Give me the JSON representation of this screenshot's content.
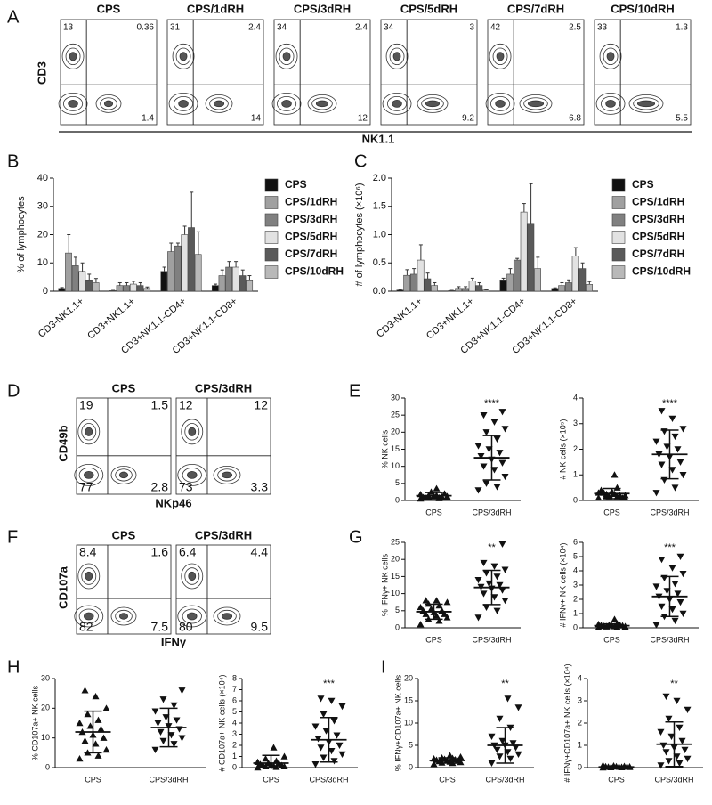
{
  "panels": [
    "A",
    "B",
    "C",
    "D",
    "E",
    "F",
    "G",
    "H",
    "I"
  ],
  "flow": [
    {
      "y_axis": "CD3",
      "x_axis": "NK1.1",
      "plots": [
        {
          "title": "CPS",
          "top_left": 13,
          "top_right": 0.36,
          "bottom_right": 1.4
        },
        {
          "title": "CPS/1dRH",
          "top_left": 31,
          "top_right": 2.4,
          "bottom_right": 14
        },
        {
          "title": "CPS/3dRH",
          "top_left": 34,
          "top_right": 2.4,
          "bottom_right": 12
        },
        {
          "title": "CPS/5dRH",
          "top_left": 34,
          "top_right": 3,
          "bottom_right": 9.2
        },
        {
          "title": "CPS/7dRH",
          "top_left": 42,
          "top_right": 2.5,
          "bottom_right": 6.8
        },
        {
          "title": "CPS/10dRH",
          "top_left": 33,
          "top_right": 1.3,
          "bottom_right": 5.5
        }
      ]
    },
    {
      "y_axis": "CD49b",
      "x_axis": "NKp46",
      "plots": [
        {
          "title": "CPS",
          "top_left": 19,
          "top_right": 1.5,
          "bottom_left": 77,
          "bottom_right": 2.8
        },
        {
          "title": "CPS/3dRH",
          "top_left": 12,
          "top_right": 12,
          "bottom_left": 73,
          "bottom_right": 3.3
        }
      ]
    },
    {
      "y_axis": "CD107a",
      "x_axis": "IFNγ",
      "plots": [
        {
          "title": "CPS",
          "top_left": 8.4,
          "top_right": 1.6,
          "bottom_left": 82,
          "bottom_right": 7.5
        },
        {
          "title": "CPS/3dRH",
          "top_left": 6.4,
          "top_right": 4.4,
          "bottom_left": 80,
          "bottom_right": 9.5
        }
      ]
    }
  ],
  "chart_data": [
    {
      "type": "bar",
      "y_label": "% of lymphocytes",
      "categories": [
        "CD3-NK1.1+",
        "CD3+NK1.1+",
        "CD3+NK1.1-CD4+",
        "CD3+NK1.1-CD8+"
      ],
      "ylim": [
        0,
        40
      ],
      "yticks": [
        0,
        10,
        20,
        30,
        40
      ],
      "series": [
        {
          "name": "CPS",
          "color": "#111111",
          "values": [
            1,
            0.2,
            7,
            2
          ],
          "errors": [
            0.3,
            0.1,
            1.5,
            0.5
          ]
        },
        {
          "name": "CPS/1dRH",
          "color": "#a0a0a0",
          "values": [
            13.5,
            2,
            14,
            5.5
          ],
          "errors": [
            6.5,
            1,
            3,
            2
          ]
        },
        {
          "name": "CPS/3dRH",
          "color": "#808080",
          "values": [
            9,
            2,
            16,
            8.5
          ],
          "errors": [
            3,
            1,
            1,
            2
          ]
        },
        {
          "name": "CPS/5dRH",
          "color": "#e2e2e2",
          "values": [
            7,
            2.5,
            20,
            8.5
          ],
          "errors": [
            3,
            1,
            3,
            2
          ]
        },
        {
          "name": "CPS/7dRH",
          "color": "#5a5a5a",
          "values": [
            4,
            2,
            22.5,
            5.5
          ],
          "errors": [
            2,
            1,
            12.5,
            2
          ]
        },
        {
          "name": "CPS/10dRH",
          "color": "#b8b8b8",
          "values": [
            3,
            1,
            13,
            4
          ],
          "errors": [
            1.5,
            0.5,
            8,
            1.5
          ]
        }
      ]
    },
    {
      "type": "bar",
      "y_label": "# of lymphocytes (×10⁶)",
      "categories": [
        "CD3-NK1.1+",
        "CD3+NK1.1+",
        "CD3+NK1.1-CD4+",
        "CD3+NK1.1-CD8+"
      ],
      "ylim": [
        0,
        2
      ],
      "yticks": [
        {
          "value": 0,
          "label": "0.0"
        },
        0.5,
        {
          "value": 1,
          "label": "1.0"
        },
        1.5,
        {
          "value": 2,
          "label": "2.0"
        }
      ],
      "series": [
        {
          "name": "CPS",
          "color": "#111111",
          "values": [
            0.02,
            0.01,
            0.2,
            0.05
          ],
          "errors": [
            0.01,
            0.005,
            0.03,
            0.01
          ]
        },
        {
          "name": "CPS/1dRH",
          "color": "#a0a0a0",
          "values": [
            0.28,
            0.05,
            0.3,
            0.1
          ],
          "errors": [
            0.1,
            0.03,
            0.1,
            0.05
          ]
        },
        {
          "name": "CPS/3dRH",
          "color": "#808080",
          "values": [
            0.3,
            0.05,
            0.55,
            0.15
          ],
          "errors": [
            0.1,
            0.03,
            0.03,
            0.05
          ]
        },
        {
          "name": "CPS/5dRH",
          "color": "#e2e2e2",
          "values": [
            0.55,
            0.18,
            1.4,
            0.62
          ],
          "errors": [
            0.27,
            0.05,
            0.15,
            0.15
          ]
        },
        {
          "name": "CPS/7dRH",
          "color": "#5a5a5a",
          "values": [
            0.22,
            0.1,
            1.2,
            0.4
          ],
          "errors": [
            0.1,
            0.05,
            0.7,
            0.1
          ]
        },
        {
          "name": "CPS/10dRH",
          "color": "#b8b8b8",
          "values": [
            0.1,
            0.02,
            0.4,
            0.12
          ],
          "errors": [
            0.05,
            0.01,
            0.2,
            0.05
          ]
        }
      ]
    },
    {
      "type": "dot",
      "y_label": "% NK cells",
      "categories": [
        "CPS",
        "CPS/3dRH"
      ],
      "markers": [
        "triangle-up",
        "triangle-down"
      ],
      "ylim": [
        0,
        30
      ],
      "yticks": [
        0,
        5,
        10,
        15,
        20,
        25,
        30
      ],
      "significance": "****",
      "values": [
        [
          0.5,
          0.8,
          1,
          1.2,
          1.5,
          0.7,
          2,
          1.3,
          0.9,
          1.1,
          2.5,
          1.8,
          0.6,
          1.4,
          1.0,
          3.5
        ],
        [
          3,
          4,
          5,
          7,
          9,
          10,
          11,
          12,
          13,
          14,
          15,
          16,
          18,
          20,
          21,
          23,
          25,
          26
        ]
      ],
      "means": [
        1.4,
        12.5
      ],
      "sds": [
        0.9,
        6.5
      ]
    },
    {
      "type": "dot",
      "y_label": "# NK cells (×10⁵)",
      "categories": [
        "CPS",
        "CPS/3dRH"
      ],
      "markers": [
        "triangle-up",
        "triangle-down"
      ],
      "ylim": [
        0,
        4
      ],
      "yticks": [
        0,
        1,
        2,
        3,
        4
      ],
      "significance": "****",
      "values": [
        [
          0.1,
          0.15,
          0.2,
          0.2,
          0.25,
          0.3,
          0.1,
          0.35,
          0.4,
          0.2,
          0.15,
          0.3,
          0.5,
          0.25,
          0.1,
          1.0
        ],
        [
          0.3,
          0.5,
          0.8,
          1.0,
          1.2,
          1.4,
          1.5,
          1.7,
          1.8,
          2.0,
          2.1,
          2.3,
          2.5,
          2.7,
          2.8,
          3.2,
          3.5
        ]
      ],
      "means": [
        0.27,
        1.8
      ],
      "sds": [
        0.2,
        0.95
      ]
    },
    {
      "type": "dot",
      "y_label": "% IFNγ+ NK cells",
      "categories": [
        "CPS",
        "CPS/3dRH"
      ],
      "markers": [
        "triangle-up",
        "triangle-down"
      ],
      "ylim": [
        0,
        25
      ],
      "yticks": [
        0,
        5,
        10,
        15,
        20,
        25
      ],
      "significance": "**",
      "values": [
        [
          1,
          2,
          2.5,
          3,
          3.5,
          4,
          4,
          4.5,
          5,
          5,
          5.5,
          6,
          6.5,
          7,
          7.5,
          8,
          8
        ],
        [
          3,
          5,
          6,
          8,
          9,
          10,
          11,
          11.5,
          12,
          12.5,
          13,
          14,
          15,
          16,
          17,
          18,
          19,
          24.5
        ]
      ],
      "means": [
        4.7,
        11.8
      ],
      "sds": [
        2.2,
        5
      ]
    },
    {
      "type": "dot",
      "y_label": "# IFNγ+ NK cells (×10⁴)",
      "categories": [
        "CPS",
        "CPS/3dRH"
      ],
      "markers": [
        "triangle-up",
        "triangle-down"
      ],
      "ylim": [
        0,
        6
      ],
      "yticks": [
        0,
        1,
        2,
        3,
        4,
        5,
        6
      ],
      "significance": "***",
      "values": [
        [
          0.02,
          0.05,
          0.08,
          0.1,
          0.1,
          0.12,
          0.15,
          0.15,
          0.18,
          0.2,
          0.2,
          0.25,
          0.3,
          0.1,
          0.05,
          0.6
        ],
        [
          0.2,
          0.5,
          0.8,
          1.0,
          1.3,
          1.5,
          1.8,
          2.0,
          2.2,
          2.4,
          2.6,
          2.9,
          3.1,
          3.5,
          3.8,
          4.2,
          4.8,
          5.0
        ]
      ],
      "means": [
        0.15,
        2.2
      ],
      "sds": [
        0.12,
        1.4
      ]
    },
    {
      "type": "dot",
      "y_label": "% CD107a+ NK cells",
      "categories": [
        "CPS",
        "CPS/3dRH"
      ],
      "markers": [
        "triangle-up",
        "triangle-down"
      ],
      "ylim": [
        0,
        30
      ],
      "yticks": [
        0,
        10,
        20,
        30
      ],
      "values": [
        [
          3,
          4,
          5,
          6,
          8,
          9,
          10,
          11,
          12,
          13,
          14,
          15,
          16,
          18,
          20,
          24,
          26
        ],
        [
          6,
          8,
          9,
          10,
          11,
          12,
          13,
          14,
          15,
          16,
          17,
          19,
          21,
          23,
          26
        ]
      ],
      "means": [
        12,
        13.5
      ],
      "sds": [
        7,
        6.5
      ]
    },
    {
      "type": "dot",
      "y_label": "# CD107a+ NK cells (×10⁴)",
      "categories": [
        "CPS",
        "CPS/3dRH"
      ],
      "markers": [
        "triangle-up",
        "triangle-down"
      ],
      "ylim": [
        0,
        8
      ],
      "yticks": [
        0,
        1,
        2,
        3,
        4,
        5,
        6,
        7,
        8
      ],
      "significance": "***",
      "values": [
        [
          0,
          0.05,
          0.1,
          0.1,
          0.15,
          0.2,
          0.2,
          0.25,
          0.3,
          0.35,
          0.4,
          0.5,
          0.6,
          0.8,
          1.0,
          1.8
        ],
        [
          0.3,
          0.6,
          0.9,
          1.2,
          1.5,
          1.8,
          2.0,
          2.3,
          2.6,
          2.9,
          3.3,
          3.7,
          4.2,
          4.8,
          5.5,
          6,
          6.2
        ]
      ],
      "means": [
        0.4,
        2.5
      ],
      "sds": [
        0.7,
        2
      ]
    },
    {
      "type": "dot",
      "y_label": "% IFNγ+CD107a+ NK cells",
      "categories": [
        "CPS",
        "CPS/3dRH"
      ],
      "markers": [
        "triangle-up",
        "triangle-down"
      ],
      "ylim": [
        0,
        20
      ],
      "yticks": [
        0,
        5,
        10,
        15,
        20
      ],
      "significance": "**",
      "values": [
        [
          0.8,
          1,
          1.1,
          1.2,
          1.3,
          1.4,
          1.5,
          1.6,
          1.7,
          1.8,
          1.9,
          2.0,
          2.1,
          2.2,
          2.4,
          2.7
        ],
        [
          1,
          2,
          2.5,
          3,
          3.5,
          4,
          4.5,
          5,
          5,
          5.5,
          6,
          7,
          9,
          11,
          13.5,
          15.5
        ]
      ],
      "means": [
        1.6,
        5
      ],
      "sds": [
        0.6,
        4
      ]
    },
    {
      "type": "dot",
      "y_label": "# IFNγ+CD107a+ NK cells (×10⁴)",
      "categories": [
        "CPS",
        "CPS/3dRH"
      ],
      "markers": [
        "triangle-up",
        "triangle-down"
      ],
      "ylim": [
        0,
        4
      ],
      "yticks": [
        0,
        1,
        2,
        3,
        4
      ],
      "significance": "**",
      "values": [
        [
          0,
          0.01,
          0.02,
          0.02,
          0.03,
          0.03,
          0.04,
          0.05,
          0.05,
          0.06,
          0.08,
          0.1,
          0.02,
          0.01,
          0.04,
          0.03
        ],
        [
          0.1,
          0.2,
          0.3,
          0.4,
          0.5,
          0.7,
          0.8,
          0.9,
          1.0,
          1.2,
          1.4,
          1.6,
          1.8,
          2.2,
          2.6,
          3.0,
          3.2
        ]
      ],
      "means": [
        0.03,
        1.05
      ],
      "sds": [
        0.03,
        1.0
      ]
    }
  ]
}
